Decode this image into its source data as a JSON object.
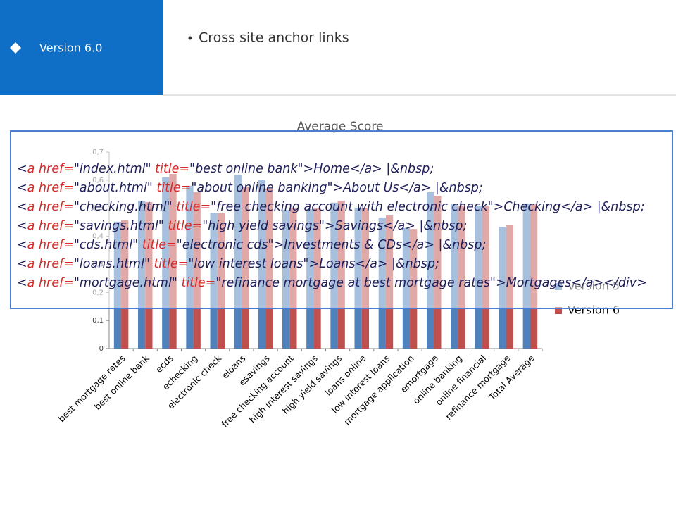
{
  "header": {
    "section": "Version 6.0",
    "bullet": "Cross site anchor links"
  },
  "chart_data": {
    "type": "bar",
    "title": "Average Score",
    "categories": [
      "best mortgage rates",
      "best online bank",
      "ecds",
      "echecking",
      "electronic check",
      "eloans",
      "esavings",
      "free checking account",
      "high interest savings",
      "high yield savings",
      "loans online",
      "low interest loans",
      "mortgage application",
      "emortgage",
      "online banking",
      "online financial",
      "refinance mortgage",
      "Total Average"
    ],
    "series": [
      {
        "name": "Version 5",
        "color": "#4f81bd",
        "values": [
          0.452,
          0.527,
          0.61,
          0.58,
          0.484,
          0.62,
          0.6,
          0.494,
          0.497,
          0.52,
          0.502,
          0.467,
          0.43,
          0.557,
          0.514,
          0.509,
          0.434,
          0.517
        ]
      },
      {
        "name": "Version 6",
        "color": "#c0504d",
        "values": [
          0.457,
          0.522,
          0.622,
          0.557,
          0.482,
          0.577,
          0.57,
          0.5,
          0.5,
          0.527,
          0.5,
          0.474,
          0.426,
          0.544,
          0.509,
          0.507,
          0.439,
          0.514
        ]
      }
    ],
    "ylim": [
      0,
      0.7
    ],
    "yticks": [
      0,
      {
        "value": 0.1,
        "label": "0,1"
      },
      {
        "value": 0.2,
        "label": "0,2"
      },
      {
        "value": 0.3,
        "label": "0,3"
      },
      {
        "value": 0.4,
        "label": "0,4"
      },
      {
        "value": 0.5,
        "label": "0,5"
      },
      {
        "value": 0.6,
        "label": "0,6"
      },
      {
        "value": 0.7,
        "label": "0,7"
      }
    ],
    "legend": "right"
  },
  "code": {
    "lines": [
      [
        "<",
        "a href=",
        "\"index.html\"",
        " title=",
        "\"best online bank\"",
        ">Home</a> |&nbsp;"
      ],
      [
        "<",
        "a href=",
        "\"about.html\"",
        " title=",
        "\"about online banking\"",
        ">About Us</a> |&nbsp;"
      ],
      [
        "<",
        "a href=",
        "\"checking.html\"",
        " title=",
        "\"free checking account with electronic check\"",
        ">Checking</a> |&nbsp;"
      ],
      [
        "<",
        "a href=",
        "\"savings.html\"",
        " title=",
        "\"high yield savings\"",
        ">Savings</a> |&nbsp;"
      ],
      [
        "<",
        "a href=",
        "\"cds.html\"",
        " title=",
        "\"electronic cds\"",
        ">Investments & CDs</a> |&nbsp;"
      ],
      [
        "<",
        "a href=",
        "\"loans.html\"",
        " title=",
        "\"low interest loans\"",
        ">Loans</a> |&nbsp;"
      ],
      [
        "<",
        "a href=",
        "\"mortgage.html\"",
        " title=",
        "\"refinance mortgage at best mortgage rates\"",
        ">Mortgages</a></div>"
      ]
    ]
  }
}
